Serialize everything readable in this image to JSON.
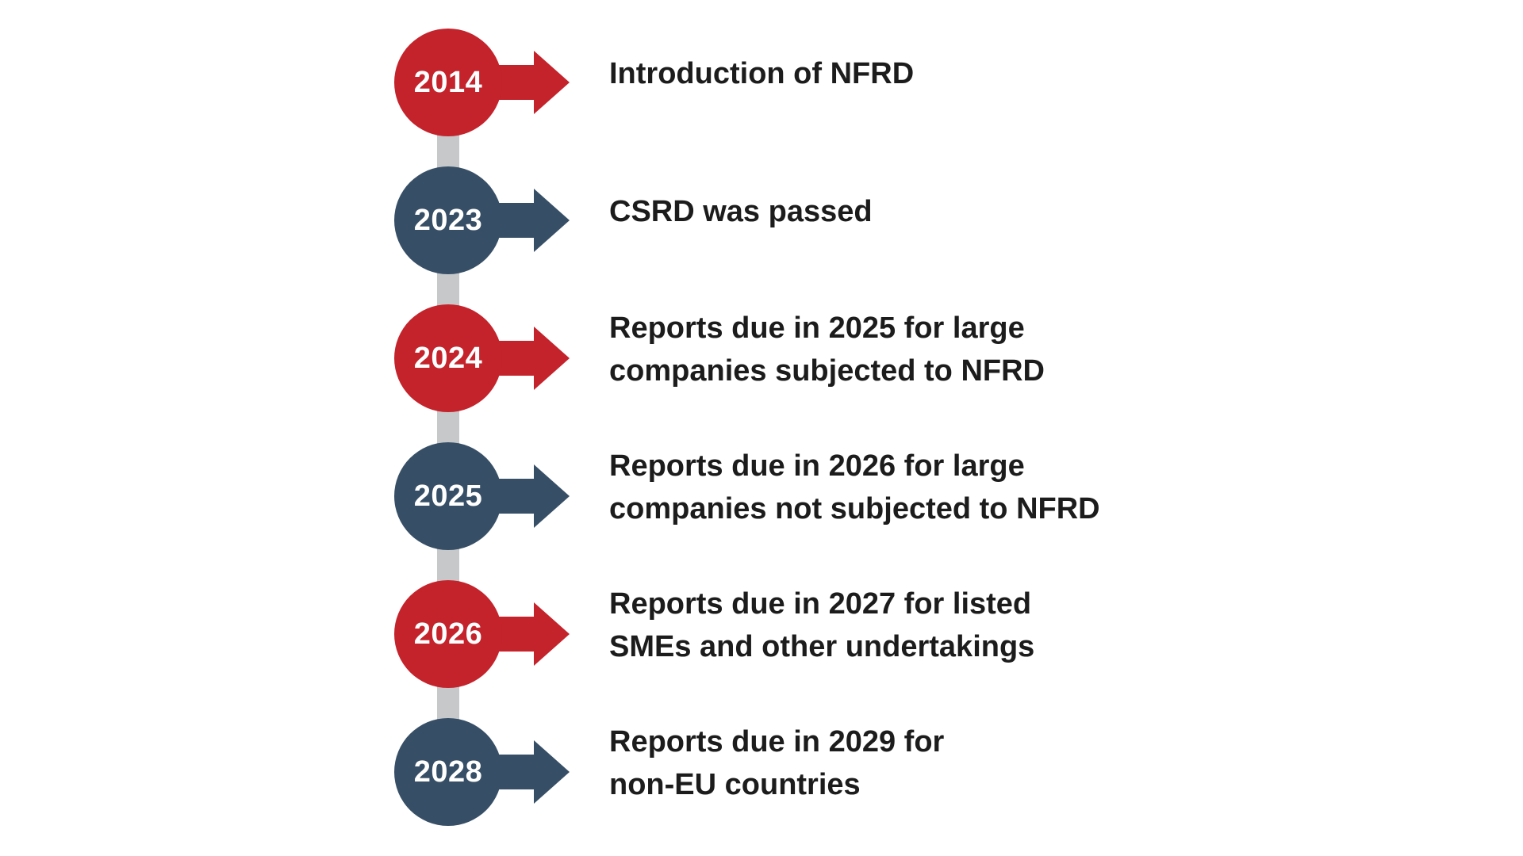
{
  "diagram": {
    "type": "vertical-timeline",
    "background": "#ffffff"
  },
  "colors": {
    "red": "#c4232b",
    "dark": "#374f66",
    "connector": "#c6c8ca",
    "label_text": "#1c1c1c",
    "year_text": "#ffffff"
  },
  "items": [
    {
      "year": "2014",
      "color": "red",
      "label": "Introduction of NFRD"
    },
    {
      "year": "2023",
      "color": "dark",
      "label": "CSRD was passed"
    },
    {
      "year": "2024",
      "color": "red",
      "label": "Reports due in 2025 for large\ncompanies subjected to NFRD"
    },
    {
      "year": "2025",
      "color": "dark",
      "label": "Reports due in 2026 for large\ncompanies not subjected to NFRD"
    },
    {
      "year": "2026",
      "color": "red",
      "label": "Reports due in 2027 for listed\nSMEs and other undertakings"
    },
    {
      "year": "2028",
      "color": "dark",
      "label": "Reports due in 2029 for\nnon-EU countries"
    }
  ]
}
